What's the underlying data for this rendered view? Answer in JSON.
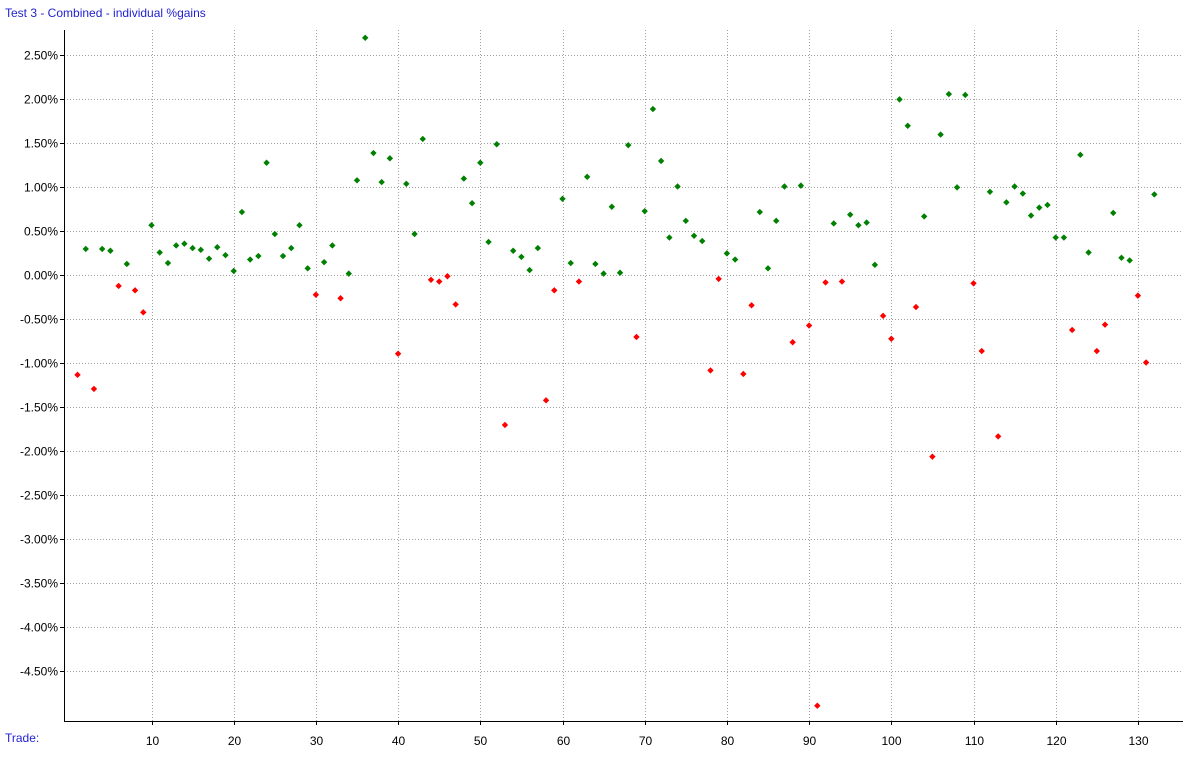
{
  "chart": {
    "title": "Test 3 - Combined - individual %gains",
    "xlabel": "Trade:"
  },
  "colors": {
    "background": "#ffffff",
    "title_text": "#1f1fd0",
    "axis": "#000000",
    "grid": "#a0a0a0",
    "gain": "#008000",
    "loss": "#ff0000"
  },
  "chart_data": {
    "type": "scatter",
    "title": "Test 3 - Combined - individual %gains",
    "xlabel": "Trade:",
    "ylabel": "",
    "xlim": [
      0,
      133
    ],
    "ylim": [
      -4.95,
      2.75
    ],
    "x_ticks": [
      10,
      20,
      30,
      40,
      50,
      60,
      70,
      80,
      90,
      100,
      110,
      120,
      130
    ],
    "y_ticks": [
      2.5,
      2.0,
      1.5,
      1.0,
      0.5,
      0.0,
      -0.5,
      -1.0,
      -1.5,
      -2.0,
      -2.5,
      -3.0,
      -3.5,
      -4.0,
      -4.5
    ],
    "y_tick_labels": [
      "2.50%",
      "2.00%",
      "1.50%",
      "1.00%",
      "0.50%",
      "0.00%",
      "-0.50%",
      "-1.00%",
      "-1.50%",
      "-2.00%",
      "-2.50%",
      "-3.00%",
      "-3.50%",
      "-4.00%",
      "-4.50%"
    ],
    "grid": true,
    "legend": "none",
    "series": [
      {
        "marker": "diamond",
        "x": [
          1,
          2,
          3,
          4,
          5,
          6,
          7,
          8,
          9,
          10,
          11,
          12,
          13,
          14,
          15,
          16,
          17,
          18,
          19,
          20,
          21,
          22,
          23,
          24,
          25,
          26,
          27,
          28,
          29,
          30,
          31,
          32,
          33,
          34,
          35,
          36,
          37,
          38,
          39,
          40,
          41,
          42,
          43,
          44,
          45,
          46,
          47,
          48,
          49,
          50,
          51,
          52,
          53,
          54,
          55,
          56,
          57,
          58,
          59,
          60,
          61,
          62,
          63,
          64,
          65,
          66,
          67,
          68,
          69,
          70,
          71,
          72,
          73,
          74,
          75,
          76,
          77,
          78,
          79,
          80,
          81,
          82,
          83,
          84,
          85,
          86,
          87,
          88,
          89,
          90,
          91,
          92,
          93,
          94,
          95,
          96,
          97,
          98,
          99,
          100,
          101,
          102,
          103,
          104,
          105,
          106,
          107,
          108,
          109,
          110,
          111,
          112,
          113,
          114,
          115,
          116,
          117,
          118,
          119,
          120,
          121,
          122,
          123,
          124,
          125,
          126,
          127,
          128,
          129,
          130,
          131,
          132
        ],
        "y": [
          -1.14,
          0.29,
          -1.3,
          0.29,
          0.27,
          -0.13,
          0.12,
          -0.18,
          -0.43,
          0.56,
          0.25,
          0.13,
          0.33,
          0.35,
          0.3,
          0.28,
          0.18,
          0.31,
          0.22,
          0.04,
          0.71,
          0.17,
          0.21,
          1.27,
          0.46,
          0.21,
          0.3,
          0.56,
          0.07,
          -0.23,
          0.14,
          0.33,
          -0.27,
          0.01,
          1.07,
          2.69,
          1.38,
          1.05,
          1.32,
          -0.9,
          1.03,
          0.46,
          1.54,
          -0.06,
          -0.08,
          -0.02,
          -0.34,
          1.09,
          0.81,
          1.27,
          0.37,
          1.48,
          -1.71,
          0.27,
          0.2,
          0.05,
          0.3,
          -1.43,
          -0.18,
          0.86,
          0.13,
          -0.08,
          1.11,
          0.12,
          0.01,
          0.77,
          0.02,
          1.47,
          -0.71,
          0.72,
          1.88,
          1.29,
          0.42,
          1.0,
          0.61,
          0.44,
          0.38,
          -1.09,
          -0.05,
          0.24,
          0.17,
          -1.13,
          -0.35,
          0.71,
          0.07,
          0.61,
          1.0,
          -0.77,
          1.01,
          -0.58,
          -4.9,
          -0.09,
          0.58,
          -0.08,
          0.68,
          0.56,
          0.59,
          0.11,
          -0.47,
          -0.73,
          1.99,
          1.69,
          -0.37,
          0.66,
          -2.07,
          1.59,
          2.05,
          0.99,
          2.04,
          -0.1,
          -0.87,
          0.94,
          -1.84,
          0.82,
          1.0,
          0.92,
          0.67,
          0.76,
          0.79,
          0.42,
          0.42,
          -0.63,
          1.36,
          0.25,
          -0.87,
          -0.57,
          0.7,
          0.19,
          0.16,
          -0.24,
          -1.0,
          0.91
        ]
      }
    ]
  }
}
